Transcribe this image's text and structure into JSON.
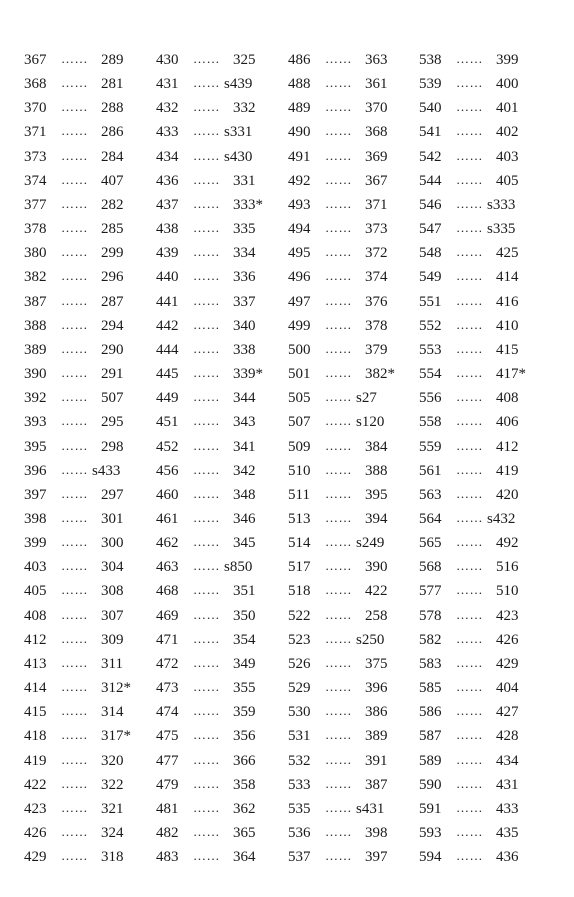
{
  "page": {
    "leader": "……",
    "columns": [
      {
        "entries": [
          {
            "left": "367",
            "right": "289"
          },
          {
            "left": "368",
            "right": "281"
          },
          {
            "left": "370",
            "right": "288"
          },
          {
            "left": "371",
            "right": "286"
          },
          {
            "left": "373",
            "right": "284"
          },
          {
            "left": "374",
            "right": "407"
          },
          {
            "left": "377",
            "right": "282"
          },
          {
            "left": "378",
            "right": "285"
          },
          {
            "left": "380",
            "right": "299"
          },
          {
            "left": "382",
            "right": "296"
          },
          {
            "left": "387",
            "right": "287"
          },
          {
            "left": "388",
            "right": "294"
          },
          {
            "left": "389",
            "right": "290"
          },
          {
            "left": "390",
            "right": "291"
          },
          {
            "left": "392",
            "right": "507"
          },
          {
            "left": "393",
            "right": "295"
          },
          {
            "left": "395",
            "right": "298"
          },
          {
            "left": "396",
            "right": "s433"
          },
          {
            "left": "397",
            "right": "297"
          },
          {
            "left": "398",
            "right": "301"
          },
          {
            "left": "399",
            "right": "300"
          },
          {
            "left": "403",
            "right": "304"
          },
          {
            "left": "405",
            "right": "308"
          },
          {
            "left": "408",
            "right": "307"
          },
          {
            "left": "412",
            "right": "309"
          },
          {
            "left": "413",
            "right": "311"
          },
          {
            "left": "414",
            "right": "312*"
          },
          {
            "left": "415",
            "right": "314"
          },
          {
            "left": "418",
            "right": "317*"
          },
          {
            "left": "419",
            "right": "320"
          },
          {
            "left": "422",
            "right": "322"
          },
          {
            "left": "423",
            "right": "321"
          },
          {
            "left": "426",
            "right": "324"
          },
          {
            "left": "429",
            "right": "318"
          }
        ]
      },
      {
        "entries": [
          {
            "left": "430",
            "right": "325"
          },
          {
            "left": "431",
            "right": "s439"
          },
          {
            "left": "432",
            "right": "332"
          },
          {
            "left": "433",
            "right": "s331"
          },
          {
            "left": "434",
            "right": "s430"
          },
          {
            "left": "436",
            "right": "331"
          },
          {
            "left": "437",
            "right": "333*"
          },
          {
            "left": "438",
            "right": "335"
          },
          {
            "left": "439",
            "right": "334"
          },
          {
            "left": "440",
            "right": "336"
          },
          {
            "left": "441",
            "right": "337"
          },
          {
            "left": "442",
            "right": "340"
          },
          {
            "left": "444",
            "right": "338"
          },
          {
            "left": "445",
            "right": "339*"
          },
          {
            "left": "449",
            "right": "344"
          },
          {
            "left": "451",
            "right": "343"
          },
          {
            "left": "452",
            "right": "341"
          },
          {
            "left": "456",
            "right": "342"
          },
          {
            "left": "460",
            "right": "348"
          },
          {
            "left": "461",
            "right": "346"
          },
          {
            "left": "462",
            "right": "345"
          },
          {
            "left": "463",
            "right": "s850"
          },
          {
            "left": "468",
            "right": "351"
          },
          {
            "left": "469",
            "right": "350"
          },
          {
            "left": "471",
            "right": "354"
          },
          {
            "left": "472",
            "right": "349"
          },
          {
            "left": "473",
            "right": "355"
          },
          {
            "left": "474",
            "right": "359"
          },
          {
            "left": "475",
            "right": "356"
          },
          {
            "left": "477",
            "right": "366"
          },
          {
            "left": "479",
            "right": "358"
          },
          {
            "left": "481",
            "right": "362"
          },
          {
            "left": "482",
            "right": "365"
          },
          {
            "left": "483",
            "right": "364"
          }
        ]
      },
      {
        "entries": [
          {
            "left": "486",
            "right": "363"
          },
          {
            "left": "488",
            "right": "361"
          },
          {
            "left": "489",
            "right": "370"
          },
          {
            "left": "490",
            "right": "368"
          },
          {
            "left": "491",
            "right": "369"
          },
          {
            "left": "492",
            "right": "367"
          },
          {
            "left": "493",
            "right": "371"
          },
          {
            "left": "494",
            "right": "373"
          },
          {
            "left": "495",
            "right": "372"
          },
          {
            "left": "496",
            "right": "374"
          },
          {
            "left": "497",
            "right": "376"
          },
          {
            "left": "499",
            "right": "378"
          },
          {
            "left": "500",
            "right": "379"
          },
          {
            "left": "501",
            "right": "382*"
          },
          {
            "left": "505",
            "right": "s27"
          },
          {
            "left": "507",
            "right": "s120"
          },
          {
            "left": "509",
            "right": "384"
          },
          {
            "left": "510",
            "right": "388"
          },
          {
            "left": "511",
            "right": "395"
          },
          {
            "left": "513",
            "right": "394"
          },
          {
            "left": "514",
            "right": "s249"
          },
          {
            "left": "517",
            "right": "390"
          },
          {
            "left": "518",
            "right": "422"
          },
          {
            "left": "522",
            "right": "258"
          },
          {
            "left": "523",
            "right": "s250"
          },
          {
            "left": "526",
            "right": "375"
          },
          {
            "left": "529",
            "right": "396"
          },
          {
            "left": "530",
            "right": "386"
          },
          {
            "left": "531",
            "right": "389"
          },
          {
            "left": "532",
            "right": "391"
          },
          {
            "left": "533",
            "right": "387"
          },
          {
            "left": "535",
            "right": "s431"
          },
          {
            "left": "536",
            "right": "398"
          },
          {
            "left": "537",
            "right": "397"
          }
        ]
      },
      {
        "entries": [
          {
            "left": "538",
            "right": "399"
          },
          {
            "left": "539",
            "right": "400"
          },
          {
            "left": "540",
            "right": "401"
          },
          {
            "left": "541",
            "right": "402"
          },
          {
            "left": "542",
            "right": "403"
          },
          {
            "left": "544",
            "right": "405"
          },
          {
            "left": "546",
            "right": "s333"
          },
          {
            "left": "547",
            "right": "s335"
          },
          {
            "left": "548",
            "right": "425"
          },
          {
            "left": "549",
            "right": "414"
          },
          {
            "left": "551",
            "right": "416"
          },
          {
            "left": "552",
            "right": "410"
          },
          {
            "left": "553",
            "right": "415"
          },
          {
            "left": "554",
            "right": "417*"
          },
          {
            "left": "556",
            "right": "408"
          },
          {
            "left": "558",
            "right": "406"
          },
          {
            "left": "559",
            "right": "412"
          },
          {
            "left": "561",
            "right": "419"
          },
          {
            "left": "563",
            "right": "420"
          },
          {
            "left": "564",
            "right": "s432"
          },
          {
            "left": "565",
            "right": "492"
          },
          {
            "left": "568",
            "right": "516"
          },
          {
            "left": "577",
            "right": "510"
          },
          {
            "left": "578",
            "right": "423"
          },
          {
            "left": "582",
            "right": "426"
          },
          {
            "left": "583",
            "right": "429"
          },
          {
            "left": "585",
            "right": "404"
          },
          {
            "left": "586",
            "right": "427"
          },
          {
            "left": "587",
            "right": "428"
          },
          {
            "left": "589",
            "right": "434"
          },
          {
            "left": "590",
            "right": "431"
          },
          {
            "left": "591",
            "right": "433"
          },
          {
            "left": "593",
            "right": "435"
          },
          {
            "left": "594",
            "right": "436"
          }
        ]
      }
    ]
  }
}
